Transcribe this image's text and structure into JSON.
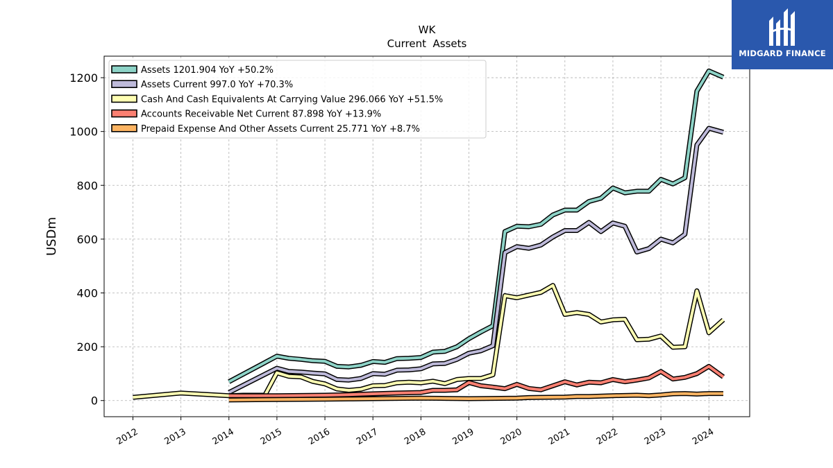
{
  "chart_data": {
    "type": "line",
    "title": "WK",
    "subtitle": "Current  Assets",
    "ylabel": "USDm",
    "xlabel": "",
    "xlim": [
      2011.4,
      2024.85
    ],
    "ylim": [
      -60,
      1280
    ],
    "yticks": [
      0,
      200,
      400,
      600,
      800,
      1000,
      1200
    ],
    "xticks": [
      "2012",
      "2013",
      "2014",
      "2015",
      "2016",
      "2017",
      "2018",
      "2019",
      "2020",
      "2021",
      "2022",
      "2023",
      "2024"
    ],
    "grid": true,
    "legend_position": "top-left",
    "series": [
      {
        "name": "Assets  1201.904 YoY +50.2%",
        "color": "#8dd3c7",
        "points": [
          [
            2014.0,
            70
          ],
          [
            2015.0,
            165
          ],
          [
            2015.25,
            157
          ],
          [
            2015.5,
            153
          ],
          [
            2015.75,
            148
          ],
          [
            2016.0,
            146
          ],
          [
            2016.25,
            127
          ],
          [
            2016.5,
            125
          ],
          [
            2016.75,
            131
          ],
          [
            2017.0,
            145
          ],
          [
            2017.25,
            142
          ],
          [
            2017.5,
            156
          ],
          [
            2017.75,
            157
          ],
          [
            2018.0,
            160
          ],
          [
            2018.25,
            180
          ],
          [
            2018.5,
            183
          ],
          [
            2018.75,
            200
          ],
          [
            2019.0,
            230
          ],
          [
            2019.25,
            255
          ],
          [
            2019.5,
            278
          ],
          [
            2019.75,
            628
          ],
          [
            2020.0,
            648
          ],
          [
            2020.25,
            646
          ],
          [
            2020.5,
            655
          ],
          [
            2020.75,
            690
          ],
          [
            2021.0,
            708
          ],
          [
            2021.25,
            708
          ],
          [
            2021.5,
            740
          ],
          [
            2021.75,
            752
          ],
          [
            2022.0,
            790
          ],
          [
            2022.25,
            772
          ],
          [
            2022.5,
            778
          ],
          [
            2022.75,
            778
          ],
          [
            2023.0,
            822
          ],
          [
            2023.25,
            805
          ],
          [
            2023.5,
            828
          ],
          [
            2023.75,
            1150
          ],
          [
            2024.0,
            1225
          ],
          [
            2024.3,
            1202
          ]
        ]
      },
      {
        "name": "Assets Current  997.0 YoY +70.3%",
        "color": "#bebada",
        "points": [
          [
            2014.0,
            30
          ],
          [
            2015.0,
            120
          ],
          [
            2015.25,
            108
          ],
          [
            2015.5,
            106
          ],
          [
            2015.75,
            102
          ],
          [
            2016.0,
            99
          ],
          [
            2016.25,
            78
          ],
          [
            2016.5,
            76
          ],
          [
            2016.75,
            82
          ],
          [
            2017.0,
            100
          ],
          [
            2017.25,
            98
          ],
          [
            2017.5,
            113
          ],
          [
            2017.75,
            114
          ],
          [
            2018.0,
            118
          ],
          [
            2018.25,
            136
          ],
          [
            2018.5,
            138
          ],
          [
            2018.75,
            153
          ],
          [
            2019.0,
            176
          ],
          [
            2019.25,
            185
          ],
          [
            2019.5,
            204
          ],
          [
            2019.75,
            550
          ],
          [
            2020.0,
            572
          ],
          [
            2020.25,
            566
          ],
          [
            2020.5,
            578
          ],
          [
            2020.75,
            608
          ],
          [
            2021.0,
            632
          ],
          [
            2021.25,
            632
          ],
          [
            2021.5,
            662
          ],
          [
            2021.75,
            628
          ],
          [
            2022.0,
            660
          ],
          [
            2022.25,
            648
          ],
          [
            2022.5,
            552
          ],
          [
            2022.75,
            565
          ],
          [
            2023.0,
            600
          ],
          [
            2023.25,
            586
          ],
          [
            2023.5,
            618
          ],
          [
            2023.75,
            950
          ],
          [
            2024.0,
            1012
          ],
          [
            2024.3,
            997
          ]
        ]
      },
      {
        "name": "Cash And Cash Equivalents At Carrying Value  296.066 YoY +51.5%",
        "color": "#ffffb3",
        "points": [
          [
            2012.0,
            12
          ],
          [
            2013.0,
            28
          ],
          [
            2014.0,
            18
          ],
          [
            2014.3,
            20
          ],
          [
            2014.75,
            20
          ],
          [
            2015.0,
            103
          ],
          [
            2015.25,
            90
          ],
          [
            2015.5,
            88
          ],
          [
            2015.75,
            71
          ],
          [
            2016.0,
            62
          ],
          [
            2016.25,
            43
          ],
          [
            2016.5,
            38
          ],
          [
            2016.75,
            42
          ],
          [
            2017.0,
            55
          ],
          [
            2017.25,
            56
          ],
          [
            2017.5,
            66
          ],
          [
            2017.75,
            68
          ],
          [
            2018.0,
            66
          ],
          [
            2018.25,
            72
          ],
          [
            2018.5,
            63
          ],
          [
            2018.75,
            78
          ],
          [
            2019.0,
            82
          ],
          [
            2019.25,
            82
          ],
          [
            2019.5,
            96
          ],
          [
            2019.75,
            390
          ],
          [
            2020.0,
            382
          ],
          [
            2020.25,
            392
          ],
          [
            2020.5,
            402
          ],
          [
            2020.75,
            428
          ],
          [
            2021.0,
            320
          ],
          [
            2021.25,
            327
          ],
          [
            2021.5,
            320
          ],
          [
            2021.75,
            292
          ],
          [
            2022.0,
            300
          ],
          [
            2022.25,
            302
          ],
          [
            2022.5,
            226
          ],
          [
            2022.75,
            228
          ],
          [
            2023.0,
            240
          ],
          [
            2023.25,
            198
          ],
          [
            2023.5,
            200
          ],
          [
            2023.75,
            408
          ],
          [
            2024.0,
            252
          ],
          [
            2024.3,
            300
          ]
        ]
      },
      {
        "name": "Accounts Receivable Net Current  87.898 YoY +13.9%",
        "color": "#fb8072",
        "points": [
          [
            2014.0,
            18
          ],
          [
            2015.0,
            18
          ],
          [
            2016.0,
            20
          ],
          [
            2016.5,
            22
          ],
          [
            2017.0,
            25
          ],
          [
            2017.5,
            28
          ],
          [
            2018.0,
            30
          ],
          [
            2018.25,
            38
          ],
          [
            2018.5,
            38
          ],
          [
            2018.75,
            40
          ],
          [
            2019.0,
            67
          ],
          [
            2019.25,
            55
          ],
          [
            2019.5,
            50
          ],
          [
            2019.75,
            44
          ],
          [
            2020.0,
            60
          ],
          [
            2020.25,
            45
          ],
          [
            2020.5,
            40
          ],
          [
            2020.75,
            55
          ],
          [
            2021.0,
            70
          ],
          [
            2021.25,
            58
          ],
          [
            2021.5,
            68
          ],
          [
            2021.75,
            66
          ],
          [
            2022.0,
            78
          ],
          [
            2022.25,
            70
          ],
          [
            2022.5,
            76
          ],
          [
            2022.75,
            84
          ],
          [
            2023.0,
            108
          ],
          [
            2023.25,
            80
          ],
          [
            2023.5,
            86
          ],
          [
            2023.75,
            100
          ],
          [
            2024.0,
            127
          ],
          [
            2024.3,
            88
          ]
        ]
      },
      {
        "name": "Prepaid Expense And Other Assets Current  25.771 YoY +8.7%",
        "color": "#fdb462",
        "points": [
          [
            2014.0,
            2
          ],
          [
            2015.0,
            4
          ],
          [
            2016.0,
            5
          ],
          [
            2016.5,
            6
          ],
          [
            2017.0,
            7
          ],
          [
            2017.5,
            8
          ],
          [
            2018.0,
            9
          ],
          [
            2018.5,
            8
          ],
          [
            2019.0,
            7
          ],
          [
            2019.5,
            8
          ],
          [
            2020.0,
            9
          ],
          [
            2020.25,
            11
          ],
          [
            2020.5,
            12
          ],
          [
            2021.0,
            13
          ],
          [
            2021.25,
            15
          ],
          [
            2021.5,
            15
          ],
          [
            2022.0,
            18
          ],
          [
            2022.5,
            20
          ],
          [
            2022.75,
            18
          ],
          [
            2023.0,
            21
          ],
          [
            2023.25,
            25
          ],
          [
            2023.5,
            26
          ],
          [
            2023.75,
            24
          ],
          [
            2024.0,
            26
          ],
          [
            2024.3,
            26
          ]
        ]
      }
    ]
  },
  "logo": {
    "text": "MIDGARD FINANCE"
  }
}
